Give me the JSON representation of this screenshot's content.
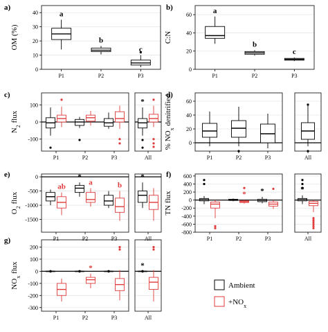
{
  "colors": {
    "ambient": "#000000",
    "nox": "#e03a3a"
  },
  "legend": {
    "ambient": "Ambient",
    "nox": "+NO",
    "nox_sub": "x"
  },
  "chart_data": [
    {
      "panel": "a)",
      "type": "box",
      "ylabel": "OM (%)",
      "ylim": [
        0,
        45
      ],
      "yticks": [
        0,
        10,
        20,
        30,
        40
      ],
      "tick_suffix": "",
      "hline": null,
      "grid": true,
      "rect_only": false,
      "categories": [
        "P1",
        "P2",
        "P3"
      ],
      "all_panel": false,
      "boxes": [
        {
          "group": "P1",
          "series": "ambient",
          "min": 14,
          "q1": 21,
          "med": 25,
          "q3": 29,
          "max": 35,
          "outliers": [],
          "sig": "a"
        },
        {
          "group": "P2",
          "series": "ambient",
          "min": 10.5,
          "q1": 12.5,
          "med": 13.5,
          "q3": 15,
          "max": 16.5,
          "outliers": [],
          "sig": "b"
        },
        {
          "group": "P3",
          "series": "ambient",
          "min": 1.5,
          "q1": 3,
          "med": 4.5,
          "q3": 6.5,
          "max": 10,
          "outliers": [
            12
          ],
          "sig": "c"
        }
      ]
    },
    {
      "panel": "b)",
      "type": "box",
      "ylabel": "C:N",
      "ylim": [
        0,
        70
      ],
      "yticks": [
        0,
        20,
        40,
        60
      ],
      "tick_suffix": "",
      "hline": null,
      "grid": true,
      "rect_only": false,
      "categories": [
        "P1",
        "P2",
        "P3"
      ],
      "all_panel": false,
      "boxes": [
        {
          "group": "P1",
          "series": "ambient",
          "min": 28,
          "q1": 34,
          "med": 37,
          "q3": 47,
          "max": 58,
          "outliers": [],
          "sig": "a"
        },
        {
          "group": "P2",
          "series": "ambient",
          "min": 15,
          "q1": 16.5,
          "med": 18,
          "q3": 19.5,
          "max": 21,
          "outliers": [],
          "sig": "b"
        },
        {
          "group": "P3",
          "series": "ambient",
          "min": 9,
          "q1": 10,
          "med": 11,
          "q3": 12,
          "max": 13,
          "outliers": [],
          "sig": "c"
        }
      ]
    },
    {
      "panel": "c)",
      "type": "box",
      "ylabel": "N",
      "ylabel_sub": "2",
      "ylabel_rest": " flux",
      "ylim": [
        -170,
        170
      ],
      "yticks": [
        -100,
        0,
        100
      ],
      "tick_suffix": "",
      "hline": 0,
      "grid": true,
      "rect_only": false,
      "categories": [
        "P1",
        "P2",
        "P3"
      ],
      "all_panel": true,
      "all_label": "All",
      "boxes": [
        {
          "group": "P1",
          "series": "ambient",
          "min": -80,
          "q1": -35,
          "med": -5,
          "q3": 25,
          "max": 85,
          "outliers": [
            -150
          ],
          "sig": ""
        },
        {
          "group": "P1",
          "series": "nox",
          "min": -30,
          "q1": 0,
          "med": 20,
          "q3": 40,
          "max": 90,
          "outliers": [
            130
          ],
          "sig": ""
        },
        {
          "group": "P2",
          "series": "ambient",
          "min": -35,
          "q1": -20,
          "med": 0,
          "q3": 15,
          "max": 30,
          "outliers": [
            -105
          ],
          "sig": ""
        },
        {
          "group": "P2",
          "series": "nox",
          "min": -20,
          "q1": 5,
          "med": 25,
          "q3": 40,
          "max": 65,
          "outliers": [],
          "sig": ""
        },
        {
          "group": "P3",
          "series": "ambient",
          "min": -40,
          "q1": -25,
          "med": -5,
          "q3": 20,
          "max": 55,
          "outliers": [],
          "sig": ""
        },
        {
          "group": "P3",
          "series": "nox",
          "min": -40,
          "q1": 0,
          "med": 20,
          "q3": 60,
          "max": 95,
          "outliers": [
            -100,
            -125
          ],
          "sig": ""
        },
        {
          "group": "All",
          "series": "ambient",
          "min": -80,
          "q1": -35,
          "med": -5,
          "q3": 20,
          "max": 85,
          "outliers": [
            -150,
            -105
          ],
          "sig": "*"
        },
        {
          "group": "All",
          "series": "nox",
          "min": -30,
          "q1": 0,
          "med": 20,
          "q3": 45,
          "max": 95,
          "outliers": [
            130,
            -100,
            -125,
            -145
          ],
          "sig": ""
        }
      ]
    },
    {
      "panel": "d)",
      "type": "box",
      "ylabel": "% NO",
      "ylabel_sub": "x",
      "ylabel_rest": " denitrified",
      "ylim": [
        -12,
        72
      ],
      "yticks": [
        0,
        20,
        40,
        60
      ],
      "tick_suffix": "",
      "hline": 0,
      "grid": true,
      "rect_only": false,
      "categories": [
        "P1",
        "P2",
        "P3"
      ],
      "all_panel": true,
      "all_label": "All",
      "boxes": [
        {
          "group": "P1",
          "series": "ambient",
          "min": -5,
          "q1": 8,
          "med": 17,
          "q3": 28,
          "max": 45,
          "outliers": [],
          "sig": ""
        },
        {
          "group": "P2",
          "series": "ambient",
          "min": -5,
          "q1": 8,
          "med": 21,
          "q3": 32,
          "max": 52,
          "outliers": [
            -12
          ],
          "sig": ""
        },
        {
          "group": "P3",
          "series": "ambient",
          "min": -8,
          "q1": 0,
          "med": 13,
          "q3": 27,
          "max": 42,
          "outliers": [],
          "sig": ""
        },
        {
          "group": "All",
          "series": "ambient",
          "min": -5,
          "q1": 5,
          "med": 17,
          "q3": 29,
          "max": 55,
          "outliers": [
            -12,
            55
          ],
          "sig": ""
        }
      ]
    },
    {
      "panel": "e)",
      "type": "box",
      "ylabel": "O",
      "ylabel_sub": "2",
      "ylabel_rest": " flux",
      "ylim": [
        -1950,
        100
      ],
      "yticks": [
        -1500,
        -1000,
        -500,
        0
      ],
      "tick_suffix": "",
      "hline": 0,
      "grid": true,
      "rect_only": false,
      "categories": [
        "P1",
        "P2",
        "P3"
      ],
      "all_panel": true,
      "all_label": "All",
      "boxes": [
        {
          "group": "P1",
          "series": "ambient",
          "min": -1000,
          "q1": -850,
          "med": -700,
          "q3": -550,
          "max": -450,
          "outliers": [],
          "sig": ""
        },
        {
          "group": "P1",
          "series": "nox",
          "min": -1350,
          "q1": -1100,
          "med": -900,
          "q3": -700,
          "max": -550,
          "outliers": [],
          "sig": "ab"
        },
        {
          "group": "P2",
          "series": "ambient",
          "min": -700,
          "q1": -550,
          "med": -400,
          "q3": -300,
          "max": -200,
          "outliers": [],
          "sig": "*"
        },
        {
          "group": "P2",
          "series": "nox",
          "min": -1050,
          "q1": -900,
          "med": -800,
          "q3": -550,
          "max": -400,
          "outliers": [],
          "sig": "a"
        },
        {
          "group": "P3",
          "series": "ambient",
          "min": -1100,
          "q1": -1000,
          "med": -850,
          "q3": -650,
          "max": -500,
          "outliers": [],
          "sig": ""
        },
        {
          "group": "P3",
          "series": "nox",
          "min": -1550,
          "q1": -1250,
          "med": -1050,
          "q3": -750,
          "max": -500,
          "outliers": [],
          "sig": "b"
        },
        {
          "group": "All",
          "series": "ambient",
          "min": -1100,
          "q1": -900,
          "med": -650,
          "q3": -500,
          "max": -200,
          "outliers": [],
          "sig": "*"
        },
        {
          "group": "All",
          "series": "nox",
          "min": -1550,
          "q1": -1150,
          "med": -900,
          "q3": -650,
          "max": -400,
          "outliers": [],
          "sig": ""
        }
      ]
    },
    {
      "panel": "f)",
      "type": "box",
      "ylabel": "TN flux",
      "ylim": [
        -800,
        650
      ],
      "yticks": [
        -800,
        -600,
        -400,
        -200,
        0,
        200,
        400,
        600
      ],
      "tick_suffix": "",
      "hline": 0,
      "grid": true,
      "rect_only": false,
      "categories": [
        "P1",
        "P2",
        "P3"
      ],
      "all_panel": true,
      "all_label": "All",
      "boxes": [
        {
          "group": "P1",
          "series": "ambient",
          "min": -100,
          "q1": -20,
          "med": 10,
          "q3": 40,
          "max": 100,
          "outliers": [
            500,
            400
          ],
          "sig": ""
        },
        {
          "group": "P1",
          "series": "nox",
          "min": -450,
          "q1": -200,
          "med": -100,
          "q3": -50,
          "max": 0,
          "outliers": [
            -650,
            -700
          ],
          "sig": ""
        },
        {
          "group": "P2",
          "series": "ambient",
          "min": -30,
          "q1": -10,
          "med": 0,
          "q3": 20,
          "max": 40,
          "outliers": [],
          "sig": ""
        },
        {
          "group": "P2",
          "series": "nox",
          "min": -90,
          "q1": -60,
          "med": -40,
          "q3": -20,
          "max": 0,
          "outliers": [
            300
          ],
          "sig": "*"
        },
        {
          "group": "P3",
          "series": "ambient",
          "min": -80,
          "q1": -40,
          "med": -10,
          "q3": 20,
          "max": 80,
          "outliers": [],
          "sig": "*"
        },
        {
          "group": "P3",
          "series": "nox",
          "min": -220,
          "q1": -150,
          "med": -100,
          "q3": -50,
          "max": 0,
          "outliers": [
            280
          ],
          "sig": ""
        },
        {
          "group": "All",
          "series": "ambient",
          "min": -100,
          "q1": -20,
          "med": 10,
          "q3": 40,
          "max": 120,
          "outliers": [
            500,
            400,
            300
          ],
          "sig": "*"
        },
        {
          "group": "All",
          "series": "nox",
          "min": -300,
          "q1": -140,
          "med": -80,
          "q3": -30,
          "max": 0,
          "outliers": [
            -450,
            -500,
            -550,
            -600,
            -650,
            -700
          ],
          "sig": ""
        }
      ]
    },
    {
      "panel": "g)",
      "type": "box",
      "ylabel": "NO",
      "ylabel_sub": "x",
      "ylabel_rest": " flux",
      "ylim": [
        -330,
        260
      ],
      "yticks": [
        -300,
        -200,
        -100,
        0,
        100,
        200
      ],
      "tick_suffix": "",
      "hline": 0,
      "grid": true,
      "rect_only": false,
      "categories": [
        "P1",
        "P2",
        "P3"
      ],
      "all_panel": true,
      "all_label": "All",
      "boxes": [
        {
          "group": "P1",
          "series": "ambient",
          "min": 0,
          "q1": 0,
          "med": 0,
          "q3": 0,
          "max": 0,
          "outliers": [],
          "sig": ""
        },
        {
          "group": "P1",
          "series": "nox",
          "min": -250,
          "q1": -200,
          "med": -150,
          "q3": -100,
          "max": -60,
          "outliers": [],
          "sig": ""
        },
        {
          "group": "P2",
          "series": "ambient",
          "min": 0,
          "q1": 0,
          "med": 0,
          "q3": 0,
          "max": 0,
          "outliers": [],
          "sig": ""
        },
        {
          "group": "P2",
          "series": "nox",
          "min": -140,
          "q1": -100,
          "med": -70,
          "q3": -50,
          "max": -20,
          "outliers": [],
          "sig": "*"
        },
        {
          "group": "P3",
          "series": "ambient",
          "min": 0,
          "q1": 0,
          "med": 0,
          "q3": 0,
          "max": 0,
          "outliers": [],
          "sig": ""
        },
        {
          "group": "P3",
          "series": "nox",
          "min": -240,
          "q1": -160,
          "med": -110,
          "q3": -60,
          "max": 10,
          "outliers": [
            200,
            180
          ],
          "sig": ""
        },
        {
          "group": "All",
          "series": "ambient",
          "min": 0,
          "q1": 0,
          "med": 0,
          "q3": 0,
          "max": 0,
          "outliers": [],
          "sig": "*"
        },
        {
          "group": "All",
          "series": "nox",
          "min": -250,
          "q1": -150,
          "med": -90,
          "q3": -50,
          "max": 10,
          "outliers": [
            200,
            180
          ],
          "sig": ""
        }
      ]
    }
  ]
}
